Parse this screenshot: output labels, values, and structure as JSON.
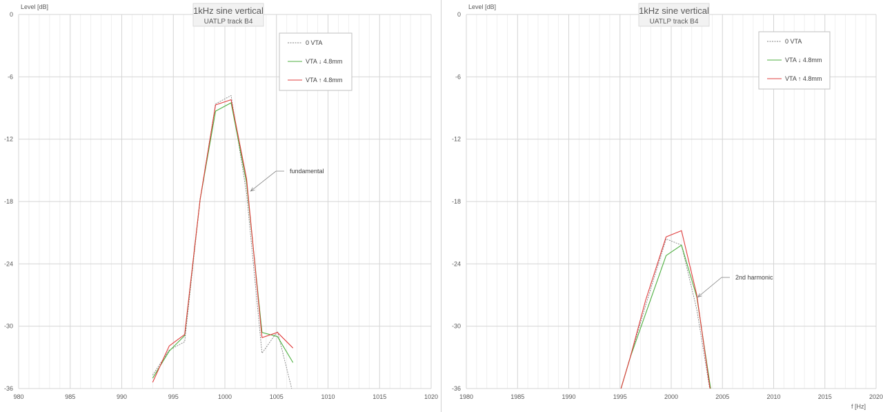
{
  "chart_data": [
    {
      "type": "line",
      "title": "1kHz sine vertical",
      "subtitle": "UATLP track B4",
      "ylabel": "Level [dB]",
      "xlabel": "",
      "xlim": [
        980,
        1020
      ],
      "ylim": [
        -36,
        0
      ],
      "x_ticks": [
        980,
        985,
        990,
        995,
        1000,
        1005,
        1010,
        1015,
        1020
      ],
      "y_ticks": [
        0,
        -6,
        -12,
        -18,
        -24,
        -30,
        -36
      ],
      "grid": true,
      "legend_position": "top-right",
      "annotation": {
        "text": "fundamental",
        "x": 1002.5,
        "y": -17.0
      },
      "series": [
        {
          "name": "0 VTA",
          "color": "#7f7f7f",
          "dash": true,
          "x": [
            993.0,
            994.6,
            996.1,
            997.6,
            999.1,
            1000.6,
            1002.1,
            1003.6,
            1005.1,
            1006.6
          ],
          "y": [
            -34.7,
            -32.3,
            -31.5,
            -17.8,
            -8.6,
            -7.8,
            -17.2,
            -32.6,
            -30.5,
            -36.5
          ]
        },
        {
          "name": "VTA ↓ 4.8mm",
          "color": "#4caf3f",
          "dash": false,
          "x": [
            993.0,
            994.6,
            996.1,
            997.6,
            999.1,
            1000.6,
            1002.1,
            1003.6,
            1005.1,
            1006.6
          ],
          "y": [
            -35.0,
            -32.4,
            -30.9,
            -17.8,
            -9.3,
            -8.5,
            -16.2,
            -30.6,
            -31.0,
            -33.5
          ]
        },
        {
          "name": "VTA ↑ 4.8mm",
          "color": "#e03c3c",
          "dash": false,
          "x": [
            993.0,
            994.6,
            996.1,
            997.6,
            999.1,
            1000.6,
            1002.1,
            1003.6,
            1005.1,
            1006.6
          ],
          "y": [
            -35.4,
            -31.9,
            -30.8,
            -17.8,
            -8.7,
            -8.2,
            -15.8,
            -31.1,
            -30.6,
            -32.1
          ]
        }
      ]
    },
    {
      "type": "line",
      "title": "1kHz sine vertical",
      "subtitle": "UATLP track B4",
      "ylabel": "Level [dB]",
      "xlabel": "f [Hz]",
      "xlim": [
        1980,
        2020
      ],
      "ylim": [
        -36,
        0
      ],
      "x_ticks": [
        1980,
        1985,
        1990,
        1995,
        2000,
        2005,
        2010,
        2015,
        2020
      ],
      "y_ticks": [
        0,
        -6,
        -12,
        -18,
        -24,
        -30,
        -36
      ],
      "grid": true,
      "legend_position": "top-right",
      "annotation": {
        "text": "2nd harmonic",
        "x": 2002.6,
        "y": -27.2
      },
      "series": [
        {
          "name": "0 VTA",
          "color": "#7f7f7f",
          "dash": true,
          "x": [
            1994.5,
            1996.0,
            1997.5,
            1999.5,
            2001.0,
            2002.5,
            2004.0
          ],
          "y": [
            -38.0,
            -33.0,
            -28.0,
            -21.6,
            -22.2,
            -28.4,
            -37.5
          ]
        },
        {
          "name": "VTA ↓ 4.8mm",
          "color": "#4caf3f",
          "dash": false,
          "x": [
            1994.5,
            1996.0,
            1997.5,
            1999.5,
            2001.0,
            2002.5,
            2004.0
          ],
          "y": [
            -38.0,
            -33.0,
            -28.8,
            -23.2,
            -22.2,
            -27.2,
            -37.0
          ]
        },
        {
          "name": "VTA ↑ 4.8mm",
          "color": "#e03c3c",
          "dash": false,
          "x": [
            1994.5,
            1996.0,
            1997.5,
            1999.5,
            2001.0,
            2002.5,
            2004.0
          ],
          "y": [
            -38.0,
            -33.0,
            -27.5,
            -21.4,
            -20.8,
            -27.0,
            -37.5
          ]
        }
      ]
    }
  ]
}
